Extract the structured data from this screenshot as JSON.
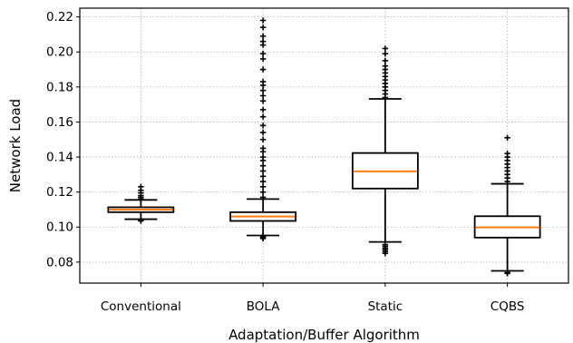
{
  "chart_data": {
    "type": "box",
    "title": "",
    "xlabel": "Adaptation/Buffer Algorithm",
    "ylabel": "Network Load",
    "ylim": [
      0.068,
      0.225
    ],
    "yticks": [
      "0.08",
      "0.10",
      "0.12",
      "0.14",
      "0.16",
      "0.18",
      "0.20",
      "0.22"
    ],
    "grid": true,
    "categories": [
      "Conventional",
      "BOLA",
      "Static",
      "CQBS"
    ],
    "boxes": [
      {
        "name": "Conventional",
        "whisker_low": 0.1045,
        "q1": 0.1085,
        "median": 0.11,
        "q3": 0.1113,
        "whisker_high": 0.1155,
        "outliers_low": [
          0.1035,
          0.104
        ],
        "outliers_high": [
          0.116,
          0.117,
          0.118,
          0.1195,
          0.121,
          0.123
        ]
      },
      {
        "name": "BOLA",
        "whisker_low": 0.0952,
        "q1": 0.1035,
        "median": 0.106,
        "q3": 0.1085,
        "whisker_high": 0.116,
        "outliers_low": [
          0.0935,
          0.094,
          0.0945
        ],
        "outliers_high": [
          0.117,
          0.12,
          0.123,
          0.126,
          0.129,
          0.132,
          0.135,
          0.138,
          0.14,
          0.143,
          0.145,
          0.15,
          0.154,
          0.158,
          0.163,
          0.167,
          0.172,
          0.175,
          0.178,
          0.181,
          0.183,
          0.19,
          0.196,
          0.199,
          0.204,
          0.206,
          0.209,
          0.214,
          0.218
        ]
      },
      {
        "name": "Static",
        "whisker_low": 0.0915,
        "q1": 0.122,
        "median": 0.1318,
        "q3": 0.1423,
        "whisker_high": 0.1732,
        "outliers_low": [
          0.085,
          0.086,
          0.087,
          0.088,
          0.089,
          0.09
        ],
        "outliers_high": [
          0.174,
          0.176,
          0.178,
          0.18,
          0.182,
          0.184,
          0.186,
          0.188,
          0.19,
          0.192,
          0.195,
          0.199,
          0.202
        ]
      },
      {
        "name": "CQBS",
        "whisker_low": 0.075,
        "q1": 0.094,
        "median": 0.0998,
        "q3": 0.1062,
        "whisker_high": 0.1247,
        "outliers_low": [
          0.0735,
          0.074
        ],
        "outliers_high": [
          0.126,
          0.128,
          0.13,
          0.132,
          0.134,
          0.136,
          0.138,
          0.14,
          0.142,
          0.151
        ]
      }
    ],
    "colors": {
      "median": "#ff7f0e",
      "box": "#000000",
      "grid": "#b0b0b0"
    }
  }
}
